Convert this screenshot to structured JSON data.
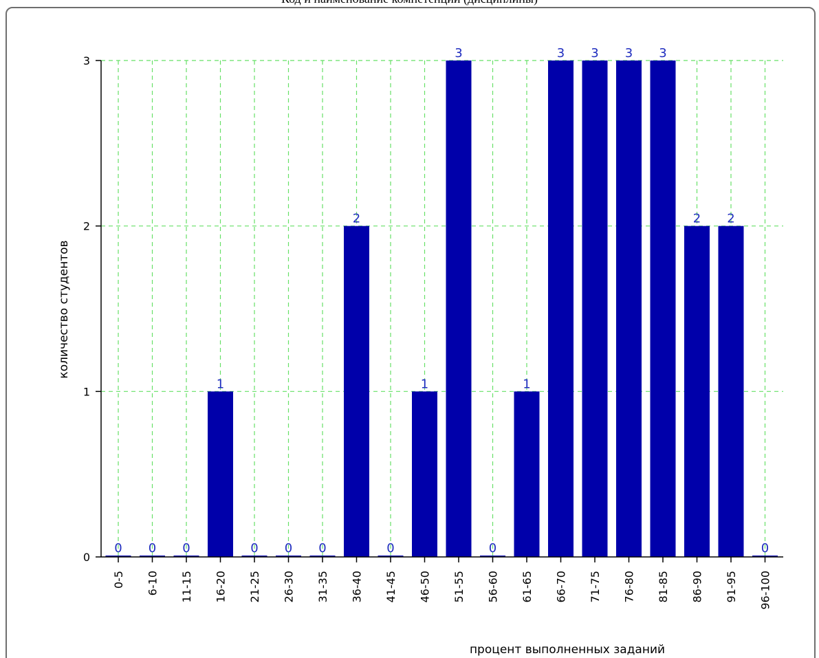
{
  "page": {
    "title": "Код и наименование компетенции (дисциплины)"
  },
  "chart_data": {
    "type": "bar",
    "title": "Код и наименование компетенции (дисциплины)",
    "xlabel": "процент выполненных заданий",
    "ylabel": "количество студентов",
    "categories": [
      "0-5",
      "6-10",
      "11-15",
      "16-20",
      "21-25",
      "26-30",
      "31-35",
      "36-40",
      "41-45",
      "46-50",
      "51-55",
      "56-60",
      "61-65",
      "66-70",
      "71-75",
      "76-80",
      "81-85",
      "86-90",
      "91-95",
      "96-100"
    ],
    "values": [
      0,
      0,
      0,
      1,
      0,
      0,
      0,
      2,
      0,
      1,
      3,
      0,
      1,
      3,
      3,
      3,
      3,
      2,
      2,
      0
    ],
    "yticks": [
      0,
      1,
      2,
      3
    ],
    "ylim": [
      0,
      3
    ],
    "grid": true,
    "colors": {
      "bar": "#0000aa",
      "bar_label": "#1f2dbf",
      "grid": "#66e066",
      "axis": "#000000"
    }
  }
}
